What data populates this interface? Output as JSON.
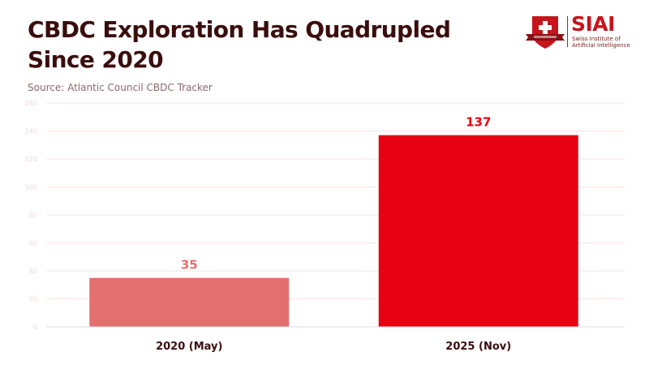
{
  "header": {
    "title": "CBDC Exploration Has Quadrupled Since 2020",
    "source": "Source: Atlantic Council CBDC Tracker"
  },
  "logo": {
    "name": "SIAI",
    "subtitle_line1": "Swiss Institute of",
    "subtitle_line2": "Artificial Intelligence",
    "color": "#c4161c"
  },
  "chart_data": {
    "type": "bar",
    "title": "CBDC Exploration Has Quadrupled Since 2020",
    "subtitle": "Source: Atlantic Council CBDC Tracker",
    "categories": [
      "2020 (May)",
      "2025 (Nov)"
    ],
    "values": [
      35,
      137
    ],
    "colors": [
      "#e36f6f",
      "#e60012"
    ],
    "xlabel": "",
    "ylabel": "",
    "ylim": [
      0,
      160
    ],
    "yticks": [
      0,
      20,
      40,
      60,
      80,
      100,
      120,
      140,
      160
    ],
    "grid": true,
    "legend": "none"
  }
}
